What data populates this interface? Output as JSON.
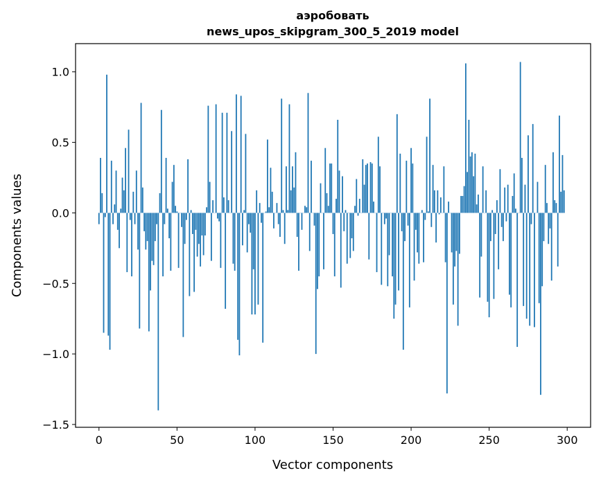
{
  "chart_data": {
    "type": "bar",
    "title_line1": "аэробовать",
    "title_line2": "news_upos_skipgram_300_5_2019 model",
    "xlabel": "Vector components",
    "ylabel": "Components values",
    "xlim": [
      -15,
      315
    ],
    "ylim": [
      -1.52,
      1.2
    ],
    "xticks": [
      0,
      50,
      100,
      150,
      200,
      250,
      300
    ],
    "yticks": [
      1.0,
      0.5,
      0.0,
      -0.5,
      -1.0,
      -1.5
    ],
    "ytick_labels": [
      "1.0",
      "0.5",
      "0.0",
      "−0.5",
      "−1.0",
      "−1.5"
    ],
    "bar_color": "#1f77b4",
    "values": [
      -0.08,
      0.39,
      0.14,
      -0.85,
      -0.03,
      0.98,
      -0.87,
      -0.97,
      0.37,
      -0.08,
      0.06,
      0.3,
      -0.12,
      -0.25,
      0.03,
      0.25,
      0.16,
      0.46,
      -0.42,
      0.59,
      -0.05,
      -0.45,
      0.15,
      -0.08,
      0.3,
      -0.26,
      -0.82,
      0.78,
      0.18,
      -0.13,
      -0.26,
      -0.2,
      -0.84,
      -0.55,
      -0.34,
      -0.37,
      -0.2,
      -0.08,
      -1.4,
      0.14,
      0.73,
      -0.45,
      -0.08,
      0.39,
      0.03,
      -0.18,
      -0.41,
      0.22,
      0.34,
      0.05,
      0.01,
      -0.39,
      0.0,
      -0.1,
      -0.88,
      -0.22,
      -0.05,
      0.38,
      -0.59,
      0.02,
      -0.15,
      -0.56,
      -0.12,
      -0.31,
      -0.22,
      -0.38,
      -0.16,
      -0.3,
      -0.16,
      0.04,
      0.76,
      0.22,
      -0.34,
      0.09,
      0.0,
      0.77,
      -0.04,
      -0.06,
      -0.39,
      0.71,
      0.11,
      -0.68,
      0.71,
      0.09,
      0.0,
      0.58,
      -0.36,
      -0.41,
      0.84,
      -0.9,
      -1.01,
      0.83,
      -0.23,
      0.02,
      0.56,
      -0.28,
      -0.08,
      -0.14,
      -0.72,
      -0.4,
      -0.72,
      0.16,
      -0.65,
      0.07,
      -0.07,
      -0.92,
      0.0,
      0.01,
      0.52,
      0.04,
      0.32,
      0.15,
      -0.11,
      0.0,
      0.07,
      -0.08,
      -0.17,
      0.81,
      0.02,
      -0.22,
      0.33,
      0.02,
      0.77,
      0.16,
      0.33,
      0.18,
      0.43,
      -0.17,
      -0.41,
      0.0,
      -0.12,
      0.0,
      0.05,
      0.04,
      0.85,
      -0.27,
      0.37,
      0.0,
      -0.09,
      -1.0,
      -0.54,
      -0.45,
      0.21,
      0.0,
      -0.4,
      0.46,
      0.14,
      0.05,
      0.35,
      0.35,
      -0.15,
      -0.45,
      0.1,
      0.66,
      0.3,
      -0.53,
      0.26,
      -0.13,
      0.02,
      -0.36,
      0.0,
      -0.32,
      -0.18,
      -0.27,
      0.05,
      0.24,
      -0.02,
      0.1,
      0.0,
      0.38,
      0.2,
      0.34,
      0.35,
      -0.33,
      0.36,
      0.35,
      0.08,
      0.0,
      -0.42,
      0.54,
      0.33,
      -0.51,
      0.0,
      -0.08,
      -0.04,
      -0.52,
      -0.3,
      0.0,
      -0.45,
      -0.75,
      -0.65,
      0.7,
      -0.55,
      0.42,
      -0.13,
      -0.97,
      -0.2,
      0.37,
      -0.09,
      -0.67,
      0.46,
      0.35,
      -0.48,
      -0.12,
      -0.28,
      -0.36,
      0.0,
      0.02,
      -0.35,
      -0.05,
      0.54,
      0.01,
      0.81,
      -0.1,
      0.34,
      0.16,
      -0.21,
      0.16,
      -0.01,
      0.11,
      0.0,
      0.33,
      -0.35,
      -1.28,
      0.08,
      0.0,
      -0.28,
      -0.65,
      -0.38,
      -0.27,
      -0.8,
      -0.29,
      0.12,
      0.12,
      0.19,
      1.06,
      0.29,
      0.66,
      0.4,
      0.43,
      0.26,
      0.42,
      0.06,
      0.13,
      -0.6,
      -0.31,
      0.33,
      0.0,
      0.16,
      -0.63,
      -0.74,
      -0.2,
      0.02,
      -0.61,
      -0.15,
      0.09,
      -0.4,
      0.31,
      -0.1,
      -0.2,
      0.18,
      -0.06,
      0.2,
      -0.58,
      -0.67,
      0.12,
      0.28,
      0.03,
      -0.95,
      0.0,
      1.07,
      0.39,
      -0.66,
      0.2,
      -0.75,
      0.55,
      -0.8,
      -0.08,
      0.63,
      -0.81,
      0.0,
      0.22,
      -0.64,
      -1.29,
      -0.52,
      -0.2,
      0.34,
      0.07,
      -0.22,
      -0.11,
      -0.48,
      0.43,
      0.09,
      0.07,
      -0.38,
      0.69,
      0.15,
      0.41,
      0.16
    ]
  }
}
